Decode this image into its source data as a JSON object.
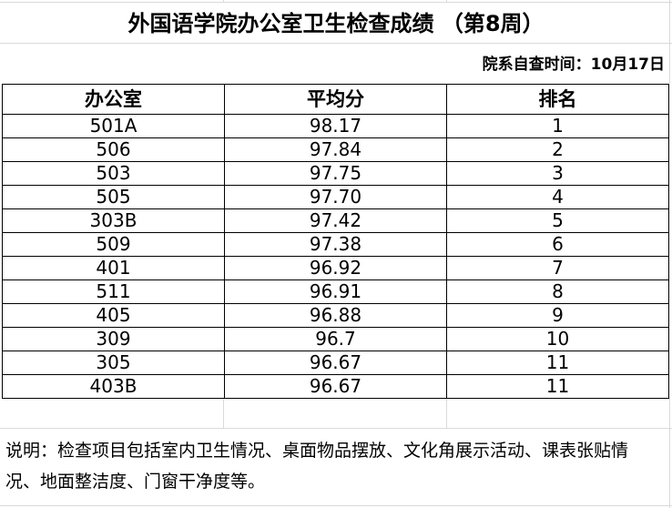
{
  "title": "外国语学院办公室卫生检查成绩 （第8周）",
  "check_date": "院系自查时间：10月17日",
  "table": {
    "headers": [
      "办公室",
      "平均分",
      "排名"
    ],
    "rows": [
      [
        "501A",
        "98.17",
        "1"
      ],
      [
        "506",
        "97.84",
        "2"
      ],
      [
        "503",
        "97.75",
        "3"
      ],
      [
        "505",
        "97.70",
        "4"
      ],
      [
        "303B",
        "97.42",
        "5"
      ],
      [
        "509",
        "97.38",
        "6"
      ],
      [
        "401",
        "96.92",
        "7"
      ],
      [
        "511",
        "96.91",
        "8"
      ],
      [
        "405",
        "96.88",
        "9"
      ],
      [
        "309",
        "96.7",
        "10"
      ],
      [
        "305",
        "96.67",
        "11"
      ],
      [
        "403B",
        "96.67",
        "11"
      ]
    ]
  },
  "note": "说明：检查项目包括室内卫生情况、桌面物品摆放、文化角展示活动、课表张贴情况、地面整洁度、门窗干净度等。"
}
